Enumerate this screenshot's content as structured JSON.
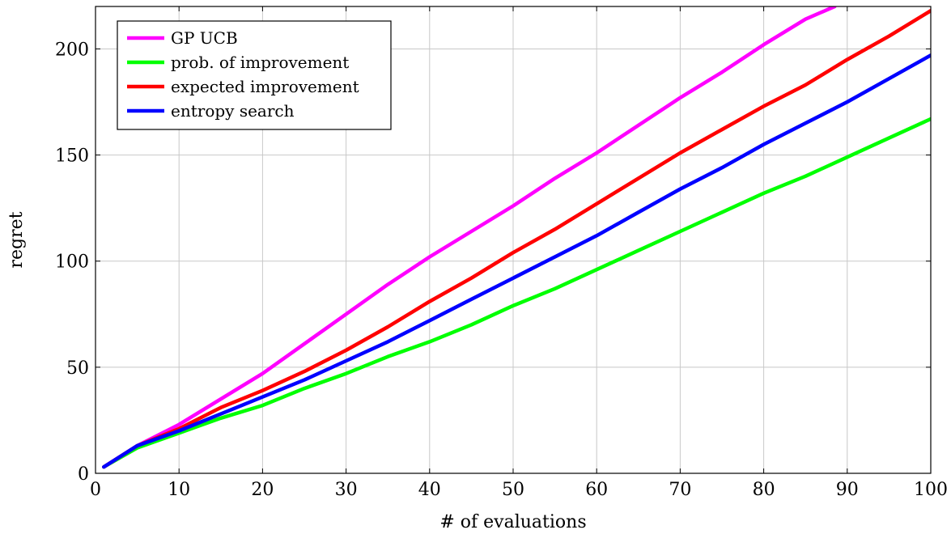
{
  "chart_data": {
    "type": "line",
    "title": "",
    "xlabel": "# of evaluations",
    "ylabel": "regret",
    "xlim": [
      0,
      100
    ],
    "ylim": [
      0,
      220
    ],
    "x_ticks": [
      0,
      10,
      20,
      30,
      40,
      50,
      60,
      70,
      80,
      90,
      100
    ],
    "y_ticks": [
      0,
      50,
      100,
      150,
      200
    ],
    "grid": true,
    "legend_position": "top-left",
    "series": [
      {
        "name": "GP UCB",
        "color": "#ff00ff",
        "x": [
          1,
          5,
          10,
          15,
          20,
          25,
          30,
          35,
          40,
          45,
          50,
          55,
          60,
          65,
          70,
          75,
          80,
          85,
          88.5
        ],
        "y": [
          3,
          13,
          23,
          35,
          47,
          61,
          75,
          89,
          102,
          114,
          126,
          139,
          151,
          164,
          177,
          189,
          202,
          214,
          220
        ]
      },
      {
        "name": "prob. of improvement",
        "color": "#00ff00",
        "x": [
          1,
          5,
          10,
          15,
          20,
          25,
          30,
          35,
          40,
          45,
          50,
          55,
          60,
          65,
          70,
          75,
          80,
          85,
          90,
          95,
          100
        ],
        "y": [
          3,
          12,
          19,
          26,
          32,
          40,
          47,
          55,
          62,
          70,
          79,
          87,
          96,
          105,
          114,
          123,
          132,
          140,
          149,
          158,
          167
        ]
      },
      {
        "name": "expected improvement",
        "color": "#ff0000",
        "x": [
          1,
          5,
          10,
          15,
          20,
          25,
          30,
          35,
          40,
          45,
          50,
          55,
          60,
          65,
          70,
          75,
          80,
          85,
          90,
          95,
          100
        ],
        "y": [
          3,
          13,
          21,
          31,
          39,
          48,
          58,
          69,
          81,
          92,
          104,
          115,
          127,
          139,
          151,
          162,
          173,
          183,
          195,
          206,
          218
        ]
      },
      {
        "name": "entropy search",
        "color": "#0000ff",
        "x": [
          1,
          5,
          10,
          15,
          20,
          25,
          30,
          35,
          40,
          45,
          50,
          55,
          60,
          65,
          70,
          75,
          80,
          85,
          90,
          95,
          100
        ],
        "y": [
          3,
          13,
          20,
          28,
          36,
          44,
          53,
          62,
          72,
          82,
          92,
          102,
          112,
          123,
          134,
          144,
          155,
          165,
          175,
          186,
          197
        ]
      }
    ]
  }
}
